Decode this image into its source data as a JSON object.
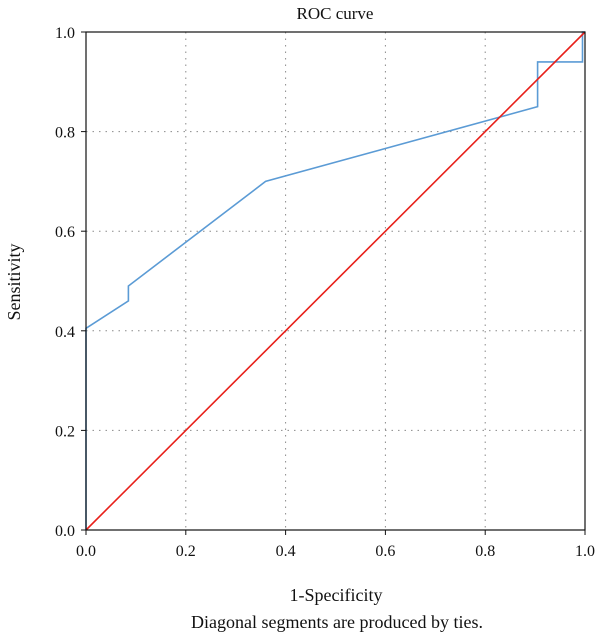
{
  "chart_data": {
    "type": "line",
    "title": "ROC curve",
    "xlabel": "1-Specificity",
    "ylabel": "Sensitivity",
    "footnote": "Diagonal segments are produced by ties.",
    "xlim": [
      0,
      1
    ],
    "ylim": [
      0,
      1
    ],
    "x_ticks": [
      "0.0",
      "0.2",
      "0.4",
      "0.6",
      "0.8",
      "1.0"
    ],
    "y_ticks": [
      "0.0",
      "0.2",
      "0.4",
      "0.6",
      "0.8",
      "1.0"
    ],
    "grid": true,
    "series": [
      {
        "color": "#5b9bd5",
        "points": [
          [
            0.0,
            0.0
          ],
          [
            0.0,
            0.405
          ],
          [
            0.085,
            0.46
          ],
          [
            0.085,
            0.49
          ],
          [
            0.36,
            0.7
          ],
          [
            0.905,
            0.85
          ],
          [
            0.905,
            0.94
          ],
          [
            0.995,
            0.94
          ],
          [
            0.995,
            1.0
          ],
          [
            1.0,
            1.0
          ]
        ]
      },
      {
        "color": "#e8201a",
        "points": [
          [
            0.0,
            0.0
          ],
          [
            1.0,
            1.0
          ]
        ]
      }
    ]
  }
}
